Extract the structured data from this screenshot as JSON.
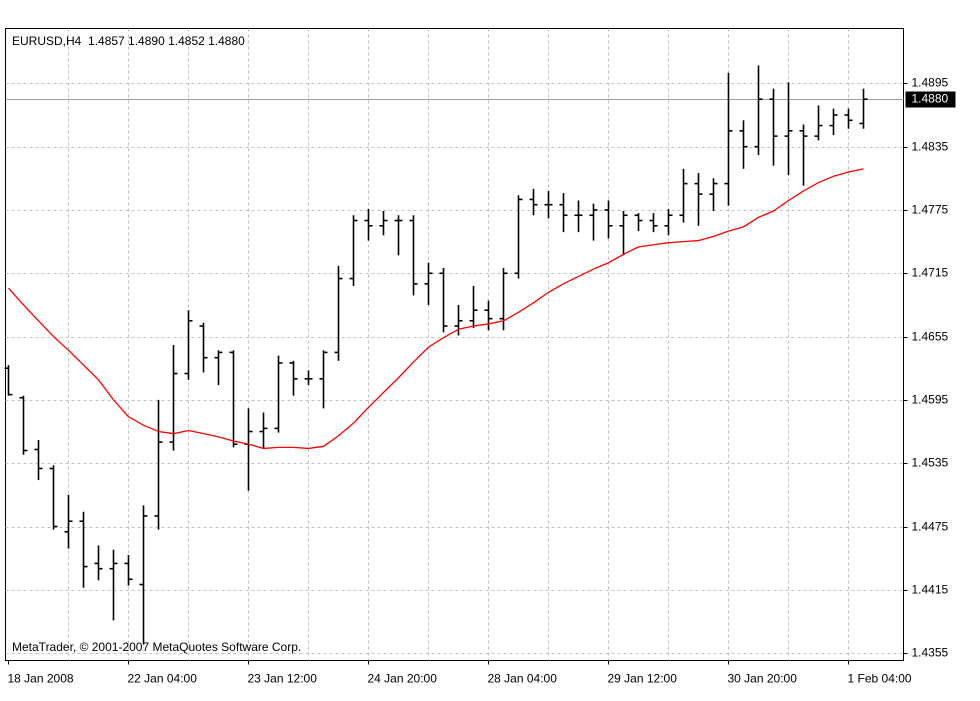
{
  "chart_data": {
    "type": "ohlc",
    "title": "EURUSD,H4  1.4857 1.4890 1.4852 1.4880",
    "annotation": "MetaTrader, © 2001-2007 MetaQuotes Software Corp.",
    "categories": [
      "18 Jan 2008",
      null,
      null,
      null,
      null,
      null,
      null,
      null,
      "22 Jan 04:00",
      null,
      null,
      null,
      null,
      null,
      null,
      null,
      "23 Jan 12:00",
      null,
      null,
      null,
      null,
      null,
      null,
      null,
      "24 Jan 20:00",
      null,
      null,
      null,
      null,
      null,
      null,
      null,
      "28 Jan 04:00",
      null,
      null,
      null,
      null,
      null,
      null,
      null,
      "29 Jan 12:00",
      null,
      null,
      null,
      null,
      null,
      null,
      null,
      "30 Jan 20:00",
      null,
      null,
      null,
      null,
      null,
      null,
      null,
      "1 Feb 04:00",
      null
    ],
    "ohlc": {
      "color": "#000000",
      "open": [
        1.4625,
        1.4597,
        1.4548,
        1.453,
        1.447,
        1.448,
        1.444,
        1.4435,
        1.444,
        1.442,
        1.4485,
        1.4555,
        1.462,
        1.4665,
        1.4635,
        1.464,
        1.4553,
        1.4565,
        1.4568,
        1.463,
        1.4615,
        1.4615,
        1.464,
        1.471,
        1.4765,
        1.476,
        1.4765,
        1.4765,
        1.4705,
        1.4715,
        1.4665,
        1.467,
        1.468,
        1.4672,
        1.4715,
        1.4785,
        1.478,
        1.478,
        1.477,
        1.477,
        1.4775,
        1.476,
        1.477,
        1.4765,
        1.476,
        1.477,
        1.48,
        1.479,
        1.48,
        1.485,
        1.4835,
        1.488,
        1.4845,
        1.485,
        1.4845,
        1.4855,
        1.4865,
        1.4857
      ],
      "high": [
        1.4628,
        1.4599,
        1.4557,
        1.4533,
        1.4505,
        1.4489,
        1.4457,
        1.4453,
        1.4448,
        1.4495,
        1.4595,
        1.4647,
        1.468,
        1.4668,
        1.4642,
        1.4642,
        1.4587,
        1.4583,
        1.4637,
        1.4632,
        1.4623,
        1.4642,
        1.4722,
        1.477,
        1.4776,
        1.4774,
        1.477,
        1.477,
        1.4725,
        1.472,
        1.4685,
        1.4703,
        1.4689,
        1.472,
        1.4789,
        1.4795,
        1.4793,
        1.4791,
        1.4784,
        1.4781,
        1.4784,
        1.4774,
        1.4772,
        1.4772,
        1.4776,
        1.4814,
        1.481,
        1.4805,
        1.4905,
        1.486,
        1.4912,
        1.489,
        1.4896,
        1.4856,
        1.4874,
        1.4871,
        1.4871,
        1.489
      ],
      "low": [
        1.4599,
        1.4543,
        1.4519,
        1.4472,
        1.4454,
        1.4417,
        1.4424,
        1.4386,
        1.4419,
        1.4363,
        1.4472,
        1.4547,
        1.4614,
        1.4621,
        1.4609,
        1.455,
        1.4509,
        1.4549,
        1.4564,
        1.4599,
        1.4609,
        1.4587,
        1.4632,
        1.4703,
        1.4746,
        1.4751,
        1.4732,
        1.4694,
        1.4685,
        1.4659,
        1.4656,
        1.4663,
        1.4661,
        1.4661,
        1.471,
        1.477,
        1.4767,
        1.4754,
        1.4754,
        1.4746,
        1.4748,
        1.4732,
        1.4755,
        1.4754,
        1.4751,
        1.4763,
        1.476,
        1.4774,
        1.4779,
        1.4814,
        1.4827,
        1.4817,
        1.4808,
        1.4798,
        1.4841,
        1.4846,
        1.4852,
        1.4852
      ],
      "close": [
        1.46,
        1.4547,
        1.453,
        1.4475,
        1.448,
        1.4437,
        1.4435,
        1.444,
        1.4425,
        1.4485,
        1.4555,
        1.462,
        1.467,
        1.4635,
        1.464,
        1.4553,
        1.4565,
        1.4568,
        1.463,
        1.4615,
        1.4615,
        1.464,
        1.471,
        1.4765,
        1.476,
        1.4765,
        1.4765,
        1.4705,
        1.4715,
        1.4665,
        1.467,
        1.468,
        1.4672,
        1.4715,
        1.4785,
        1.478,
        1.478,
        1.477,
        1.477,
        1.4775,
        1.476,
        1.477,
        1.4765,
        1.476,
        1.477,
        1.48,
        1.479,
        1.48,
        1.485,
        1.4835,
        1.488,
        1.4845,
        1.485,
        1.4845,
        1.4855,
        1.4865,
        1.486,
        1.488
      ]
    },
    "ma": {
      "color": "#ff0000",
      "values": [
        1.4701,
        1.4685,
        1.467,
        1.4655,
        1.4642,
        1.4628,
        1.4614,
        1.4595,
        1.4579,
        1.4571,
        1.4565,
        1.4563,
        1.4566,
        1.4563,
        1.456,
        1.4556,
        1.4553,
        1.4549,
        1.455,
        1.455,
        1.4549,
        1.4551,
        1.4561,
        1.4573,
        1.4588,
        1.4602,
        1.4616,
        1.4631,
        1.4645,
        1.4654,
        1.4662,
        1.4665,
        1.4667,
        1.467,
        1.4678,
        1.4687,
        1.4697,
        1.4705,
        1.4712,
        1.4719,
        1.4725,
        1.4733,
        1.474,
        1.4742,
        1.4744,
        1.4745,
        1.4746,
        1.475,
        1.4755,
        1.4759,
        1.4768,
        1.4774,
        1.4784,
        1.4793,
        1.4801,
        1.4807,
        1.4811,
        1.4814
      ]
    },
    "last_price": {
      "value": 1.488,
      "label": "1.4880"
    },
    "ylim": [
      1.4348,
      1.4947
    ],
    "yticks": [
      1.4355,
      1.4415,
      1.4475,
      1.4535,
      1.4595,
      1.4655,
      1.4715,
      1.4775,
      1.4835,
      1.4895
    ],
    "grid": true
  }
}
